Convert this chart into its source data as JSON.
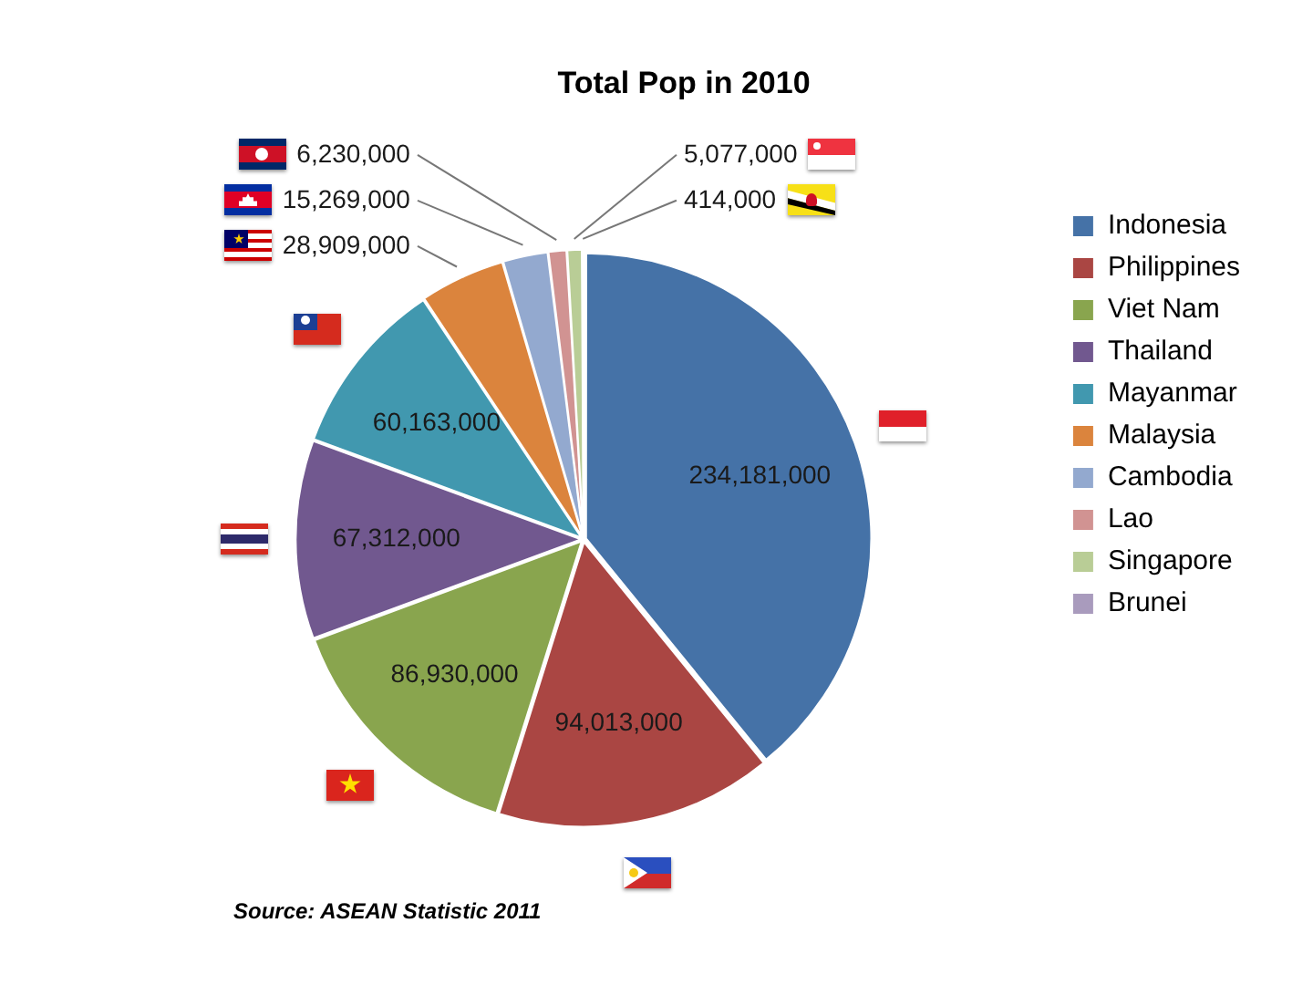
{
  "chart_data": {
    "type": "pie",
    "title": "Total Pop in 2010",
    "categories": [
      "Indonesia",
      "Philippines",
      "Viet Nam",
      "Thailand",
      "Mayanmar",
      "Malaysia",
      "Cambodia",
      "Lao",
      "Singapore",
      "Brunei"
    ],
    "values": [
      234181000,
      94013000,
      86930000,
      67312000,
      60163000,
      28909000,
      15269000,
      6230000,
      5077000,
      414000
    ],
    "value_labels": [
      "234,181,000",
      "94,013,000",
      "86,930,000",
      "67,312,000",
      "60,163,000",
      "28,909,000",
      "15,269,000",
      "6,230,000",
      "5,077,000",
      "414,000"
    ],
    "colors": [
      "#4572a7",
      "#aa4643",
      "#89a54e",
      "#71588f",
      "#4198af",
      "#db843d",
      "#93a9cf",
      "#d19392",
      "#b9cd96",
      "#a99bbd"
    ],
    "legend": "right",
    "annotations": [
      "Source: ASEAN Statistic 2011"
    ]
  }
}
